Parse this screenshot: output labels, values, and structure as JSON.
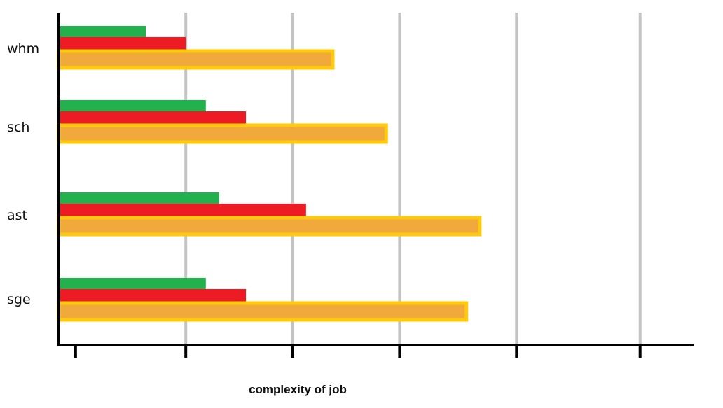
{
  "chart_data": {
    "type": "bar",
    "orientation": "horizontal",
    "categories": [
      "whm",
      "sch",
      "ast",
      "sge"
    ],
    "series": [
      {
        "color": "#22b14c",
        "values": [
          1.3,
          2.2,
          2.4,
          2.2
        ]
      },
      {
        "color": "#ed1c24",
        "values": [
          1.9,
          2.8,
          3.7,
          2.8
        ]
      },
      {
        "color": "#f2a93b",
        "outline": "#ffc90e",
        "values": [
          4.1,
          4.9,
          6.3,
          6.1
        ]
      }
    ],
    "xlabel": "complexity of job",
    "ylabel": "",
    "title": "",
    "xlim": [
      0,
      9.5
    ],
    "grid_x": true,
    "gridline_values": [
      1.9,
      3.5,
      5.1,
      6.85,
      8.7
    ],
    "tick_values": [
      0.25,
      1.9,
      3.5,
      5.1,
      6.85,
      8.7
    ],
    "colors": {
      "axis": "#000000",
      "grid": "#c3c3c3"
    }
  }
}
